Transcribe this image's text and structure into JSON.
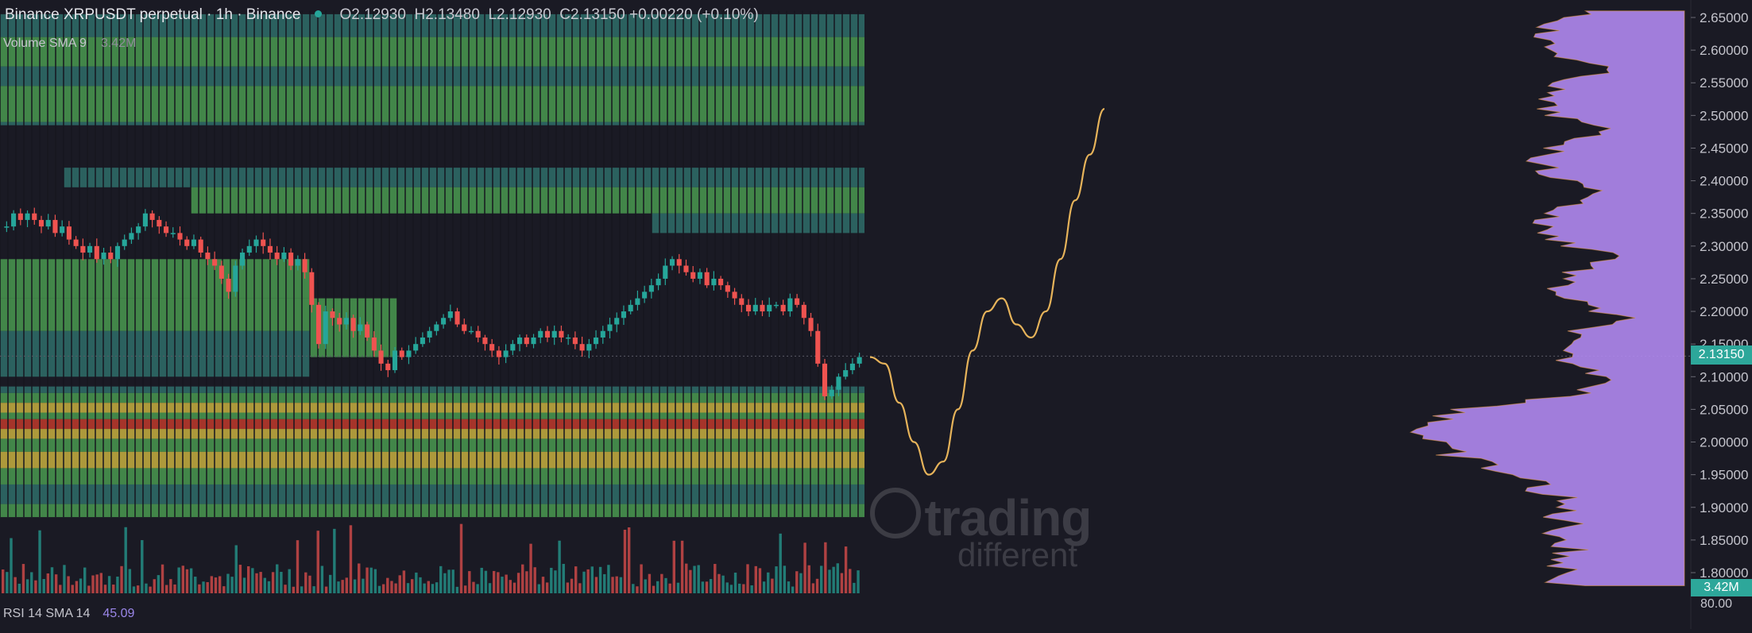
{
  "header": {
    "symbol": "Binance XRPUSDT perpetual · 1h · Binance",
    "open": "O2.12930",
    "high": "H2.13480",
    "low": "L2.12930",
    "close": "C2.13150",
    "change": "+0.00220 (+0.10%)"
  },
  "volume_indicator": {
    "label": "Volume SMA 9",
    "value": "3.42M"
  },
  "rsi_indicator": {
    "label": "RSI 14 SMA 14",
    "value": "45.09"
  },
  "price_axis": {
    "ticks": [
      "2.65000",
      "2.60000",
      "2.55000",
      "2.50000",
      "2.45000",
      "2.40000",
      "2.35000",
      "2.30000",
      "2.25000",
      "2.20000",
      "2.15000",
      "2.10000",
      "2.05000",
      "2.00000",
      "1.95000",
      "1.90000",
      "1.85000",
      "1.80000"
    ],
    "current_price": "2.13150",
    "volume_badge": "3.42M",
    "rsi_tick": "80.00"
  },
  "watermark": {
    "line1": "trading",
    "line2": "different"
  },
  "colors": {
    "background": "#1a1a24",
    "up": "#26a69a",
    "down": "#ef5350",
    "projection": "#e6b35a",
    "profile": "#b088f0",
    "heat_green": "#4a9a50",
    "heat_teal": "#2f6f6a",
    "heat_yellow": "#c8b040",
    "heat_red": "#c0392b"
  },
  "chart_data": {
    "type": "candlestick",
    "timeframe": "1h",
    "y_range": [
      1.77,
      2.67
    ],
    "close_path": [
      2.33,
      2.35,
      2.34,
      2.35,
      2.34,
      2.33,
      2.34,
      2.32,
      2.33,
      2.31,
      2.3,
      2.29,
      2.3,
      2.28,
      2.29,
      2.28,
      2.3,
      2.31,
      2.32,
      2.33,
      2.35,
      2.34,
      2.33,
      2.32,
      2.32,
      2.31,
      2.3,
      2.31,
      2.29,
      2.28,
      2.27,
      2.25,
      2.23,
      2.27,
      2.29,
      2.3,
      2.31,
      2.3,
      2.29,
      2.28,
      2.29,
      2.27,
      2.28,
      2.26,
      2.21,
      2.15,
      2.2,
      2.19,
      2.18,
      2.19,
      2.17,
      2.18,
      2.16,
      2.14,
      2.12,
      2.11,
      2.14,
      2.13,
      2.14,
      2.15,
      2.16,
      2.17,
      2.18,
      2.19,
      2.2,
      2.18,
      2.17,
      2.17,
      2.16,
      2.15,
      2.14,
      2.13,
      2.14,
      2.15,
      2.16,
      2.15,
      2.16,
      2.17,
      2.16,
      2.17,
      2.16,
      2.16,
      2.15,
      2.14,
      2.15,
      2.16,
      2.17,
      2.18,
      2.19,
      2.2,
      2.21,
      2.22,
      2.23,
      2.24,
      2.25,
      2.27,
      2.28,
      2.27,
      2.26,
      2.25,
      2.26,
      2.24,
      2.25,
      2.24,
      2.23,
      2.22,
      2.21,
      2.2,
      2.21,
      2.2,
      2.21,
      2.21,
      2.2,
      2.22,
      2.21,
      2.19,
      2.17,
      2.12,
      2.07,
      2.08,
      2.1,
      2.11,
      2.12,
      2.13
    ],
    "projection": [
      2.13,
      2.12,
      2.06,
      2.0,
      1.95,
      1.97,
      2.05,
      2.14,
      2.2,
      2.22,
      2.18,
      2.16,
      2.2,
      2.28,
      2.37,
      2.44,
      2.51
    ]
  }
}
